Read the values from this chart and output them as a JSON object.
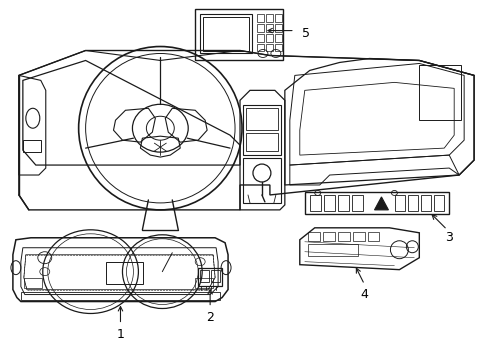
{
  "background_color": "#ffffff",
  "line_color": "#1a1a1a",
  "label_color": "#000000",
  "fig_w": 4.89,
  "fig_h": 3.6,
  "dpi": 100
}
